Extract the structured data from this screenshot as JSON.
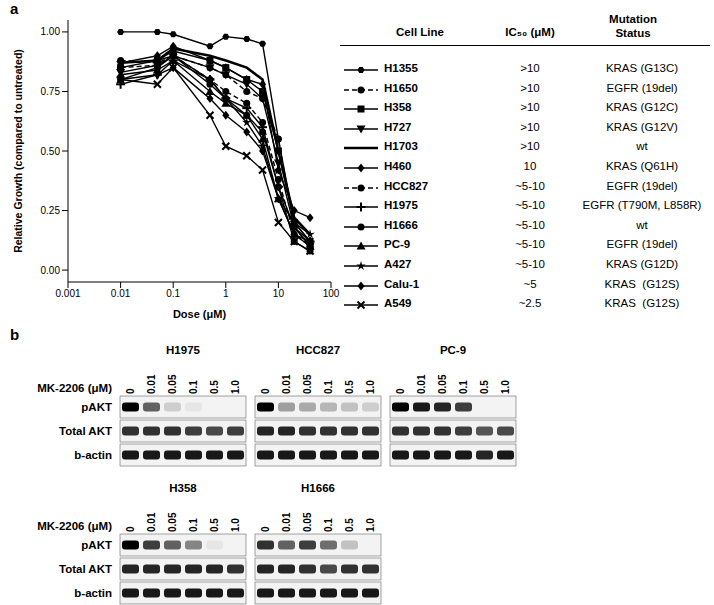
{
  "panel_labels": [
    "a",
    "b"
  ],
  "chart_data": {
    "type": "line",
    "x_label": "Dose (μM)",
    "y_label": "Relative Growth (compared to untreated)",
    "log": "x",
    "x": [
      0.01,
      0.05,
      0.1,
      0.5,
      1,
      2.5,
      5,
      10,
      20,
      40
    ],
    "xlim": [
      0.001,
      100
    ],
    "xticks": [
      0.001,
      0.01,
      0.1,
      1,
      10,
      100
    ],
    "ylim": [
      -0.05,
      1.05
    ],
    "yticks": [
      {
        "value": 0,
        "label": "0.00"
      },
      {
        "value": 0.25,
        "label": "0.25"
      },
      {
        "value": 0.5,
        "label": "0.50"
      },
      {
        "value": 0.75,
        "label": "0.75"
      },
      {
        "value": 1,
        "label": "1.00"
      }
    ],
    "series": [
      {
        "name": "H1355",
        "color": "#000000",
        "marker": "hexagon",
        "line_style": "solid",
        "values": [
          1.0,
          1.0,
          0.99,
          0.94,
          0.98,
          0.97,
          0.95,
          0.55,
          0.2,
          0.12
        ]
      },
      {
        "name": "H1650",
        "color": "#000000",
        "marker": "circle",
        "line_style": "dashed",
        "values": [
          0.88,
          0.87,
          0.9,
          0.85,
          0.82,
          0.75,
          0.72,
          0.55,
          0.18,
          0.1
        ]
      },
      {
        "name": "H358",
        "color": "#000000",
        "marker": "square",
        "line_style": "solid",
        "values": [
          0.85,
          0.88,
          0.92,
          0.88,
          0.85,
          0.8,
          0.75,
          0.5,
          0.2,
          0.12
        ]
      },
      {
        "name": "H727",
        "color": "#000000",
        "marker": "triangle-down",
        "line_style": "solid",
        "values": [
          0.83,
          0.86,
          0.9,
          0.85,
          0.82,
          0.78,
          0.72,
          0.45,
          0.18,
          0.1
        ]
      },
      {
        "name": "H1703",
        "color": "#000000",
        "marker": "none",
        "line_style": "solid",
        "values": [
          0.87,
          0.88,
          0.93,
          0.9,
          0.88,
          0.85,
          0.8,
          0.5,
          0.22,
          0.15
        ]
      },
      {
        "name": "H460",
        "color": "#000000",
        "marker": "diamond",
        "line_style": "solid",
        "values": [
          0.87,
          0.9,
          0.94,
          0.88,
          0.85,
          0.8,
          0.78,
          0.42,
          0.25,
          0.22
        ]
      },
      {
        "name": "HCC827",
        "color": "#000000",
        "marker": "circle",
        "line_style": "dashed",
        "values": [
          0.85,
          0.86,
          0.9,
          0.8,
          0.75,
          0.7,
          0.62,
          0.38,
          0.15,
          0.1
        ]
      },
      {
        "name": "H1975",
        "color": "#000000",
        "marker": "plus",
        "line_style": "solid",
        "values": [
          0.78,
          0.82,
          0.88,
          0.8,
          0.72,
          0.68,
          0.6,
          0.35,
          0.18,
          0.12
        ]
      },
      {
        "name": "H1666",
        "color": "#000000",
        "marker": "circle",
        "line_style": "solid",
        "values": [
          0.8,
          0.85,
          0.9,
          0.78,
          0.72,
          0.65,
          0.58,
          0.35,
          0.12,
          0.08
        ]
      },
      {
        "name": "PC-9",
        "color": "#000000",
        "marker": "triangle",
        "line_style": "solid",
        "values": [
          0.82,
          0.84,
          0.88,
          0.75,
          0.7,
          0.65,
          0.55,
          0.3,
          0.15,
          0.1
        ]
      },
      {
        "name": "A427",
        "color": "#000000",
        "marker": "star",
        "line_style": "solid",
        "values": [
          0.87,
          0.88,
          0.9,
          0.8,
          0.72,
          0.62,
          0.52,
          0.3,
          0.2,
          0.15
        ]
      },
      {
        "name": "Calu-1",
        "color": "#000000",
        "marker": "diamond",
        "line_style": "solid",
        "values": [
          0.8,
          0.82,
          0.85,
          0.72,
          0.65,
          0.58,
          0.5,
          0.3,
          0.15,
          0.12
        ]
      },
      {
        "name": "A549",
        "color": "#000000",
        "marker": "cross",
        "line_style": "solid",
        "values": [
          0.8,
          0.78,
          0.85,
          0.65,
          0.52,
          0.48,
          0.42,
          0.2,
          0.12,
          0.08
        ]
      }
    ]
  },
  "legend_table": {
    "headers": [
      "Cell Line",
      "IC₅₀ (μM)",
      "Mutation Status"
    ],
    "rows": [
      [
        "H1355",
        ">10",
        "KRAS (G13C)"
      ],
      [
        "H1650",
        ">10",
        "EGFR (19del)"
      ],
      [
        "H358",
        ">10",
        "KRAS (G12C)"
      ],
      [
        "H727",
        ">10",
        "KRAS (G12V)"
      ],
      [
        "H1703",
        ">10",
        "wt"
      ],
      [
        "H460",
        "10",
        "KRAS (Q61H)"
      ],
      [
        "HCC827",
        "~5-10",
        "EGFR (19del)"
      ],
      [
        "H1975",
        "~5-10",
        "EGFR (T790M, L858R)"
      ],
      [
        "H1666",
        "~5-10",
        "wt"
      ],
      [
        "PC-9",
        "~5-10",
        "EGFR (19del)"
      ],
      [
        "A427",
        "~5-10",
        "KRAS (G12D)"
      ],
      [
        "Calu-1",
        "~5",
        "KRAS  (G12S)"
      ],
      [
        "A549",
        "~2.5",
        "KRAS  (G12S)"
      ]
    ]
  },
  "blots": {
    "dose_label": "MK-2206 (μM)",
    "doses": [
      0,
      0.01,
      0.05,
      0.1,
      0.5,
      {
        "value": 1,
        "label": "1.0"
      }
    ],
    "row_labels": [
      "pAKT",
      "Total AKT",
      "b-actin"
    ],
    "panels": [
      {
        "cell_line": "H1975",
        "intensity": [
          [
            1,
            0.6,
            0.15,
            0.05,
            0,
            0
          ],
          [
            0.8,
            0.8,
            0.8,
            0.75,
            0.7,
            0.75
          ],
          [
            0.9,
            0.9,
            0.9,
            0.9,
            0.9,
            0.9
          ]
        ]
      },
      {
        "cell_line": "HCC827",
        "intensity": [
          [
            1,
            0.35,
            0.3,
            0.25,
            0.2,
            0.15
          ],
          [
            0.85,
            0.85,
            0.8,
            0.8,
            0.8,
            0.8
          ],
          [
            0.9,
            0.9,
            0.9,
            0.9,
            0.9,
            0.9
          ]
        ]
      },
      {
        "cell_line": "PC-9",
        "intensity": [
          [
            1,
            0.9,
            0.85,
            0.75,
            0,
            0
          ],
          [
            0.8,
            0.8,
            0.8,
            0.75,
            0.65,
            0.7
          ],
          [
            0.9,
            0.9,
            0.9,
            0.9,
            0.85,
            0.9
          ]
        ]
      },
      {
        "cell_line": "H358",
        "intensity": [
          [
            1,
            0.75,
            0.6,
            0.45,
            0.05,
            0
          ],
          [
            0.85,
            0.85,
            0.85,
            0.85,
            0.85,
            0.8
          ],
          [
            0.9,
            0.9,
            0.9,
            0.9,
            0.9,
            0.9
          ]
        ]
      },
      {
        "cell_line": "H1666",
        "intensity": [
          [
            0.8,
            0.6,
            0.75,
            0.55,
            0.2,
            0
          ],
          [
            0.85,
            0.85,
            0.8,
            0.7,
            0.8,
            0.8
          ],
          [
            0.9,
            0.9,
            0.9,
            0.9,
            0.9,
            0.9
          ]
        ]
      }
    ]
  }
}
